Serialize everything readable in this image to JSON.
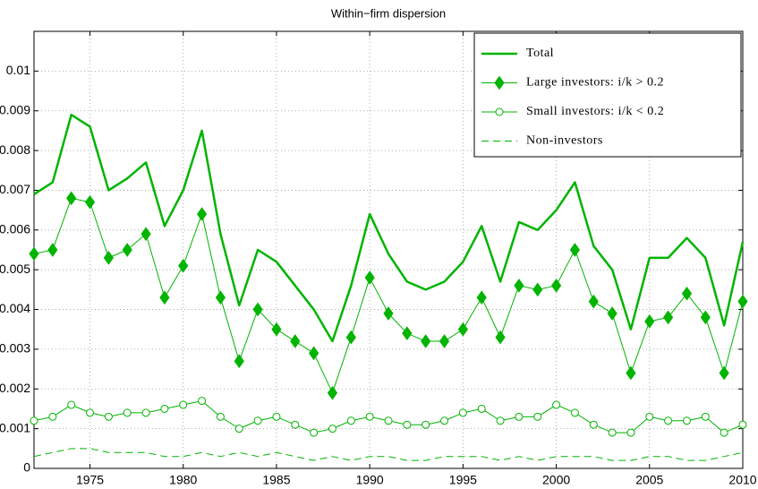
{
  "chart_data": {
    "type": "line",
    "title": "Within−firm dispersion",
    "x": [
      1972,
      1973,
      1974,
      1975,
      1976,
      1977,
      1978,
      1979,
      1980,
      1981,
      1982,
      1983,
      1984,
      1985,
      1986,
      1987,
      1988,
      1989,
      1990,
      1991,
      1992,
      1993,
      1994,
      1995,
      1996,
      1997,
      1998,
      1999,
      2000,
      2001,
      2002,
      2003,
      2004,
      2005,
      2006,
      2007,
      2008,
      2009,
      2010
    ],
    "xlim": [
      1972,
      2010
    ],
    "xticks": [
      1975,
      1980,
      1985,
      1990,
      1995,
      2000,
      2005,
      2010
    ],
    "ylim": [
      0,
      0.011
    ],
    "yticks": [
      0,
      0.001,
      0.002,
      0.003,
      0.004,
      0.005,
      0.006,
      0.007,
      0.008,
      0.009,
      0.01
    ],
    "grid": true,
    "legend": "upper right",
    "series": [
      {
        "name": "Total",
        "color": "#00b400",
        "width": 2.5,
        "marker": "none",
        "dash": false,
        "values": [
          0.0069,
          0.0072,
          0.0089,
          0.0086,
          0.007,
          0.0073,
          0.0077,
          0.0061,
          0.007,
          0.0085,
          0.0059,
          0.0041,
          0.0055,
          0.0052,
          0.0046,
          0.004,
          0.0032,
          0.0046,
          0.0064,
          0.0054,
          0.0047,
          0.0045,
          0.0047,
          0.0052,
          0.0061,
          0.0047,
          0.0062,
          0.006,
          0.0065,
          0.0072,
          0.0056,
          0.005,
          0.0035,
          0.0053,
          0.0053,
          0.0058,
          0.0053,
          0.0036,
          0.0057
        ]
      },
      {
        "name": "Large investors: i/k > 0.2",
        "color": "#00b400",
        "width": 1,
        "marker": "diamond",
        "dash": false,
        "values": [
          0.0054,
          0.0055,
          0.0068,
          0.0067,
          0.0053,
          0.0055,
          0.0059,
          0.0043,
          0.0051,
          0.0064,
          0.0043,
          0.0027,
          0.004,
          0.0035,
          0.0032,
          0.0029,
          0.0019,
          0.0033,
          0.0048,
          0.0039,
          0.0034,
          0.0032,
          0.0032,
          0.0035,
          0.0043,
          0.0033,
          0.0046,
          0.0045,
          0.0046,
          0.0055,
          0.0042,
          0.0039,
          0.0024,
          0.0037,
          0.0038,
          0.0044,
          0.0038,
          0.0024,
          0.0042
        ]
      },
      {
        "name": "Small investors: i/k < 0.2",
        "color": "#00b400",
        "width": 1,
        "marker": "circle",
        "dash": false,
        "values": [
          0.0012,
          0.0013,
          0.0016,
          0.0014,
          0.0013,
          0.0014,
          0.0014,
          0.0015,
          0.0016,
          0.0017,
          0.0013,
          0.001,
          0.0012,
          0.0013,
          0.0011,
          0.0009,
          0.001,
          0.0012,
          0.0013,
          0.0012,
          0.0011,
          0.0011,
          0.0012,
          0.0014,
          0.0015,
          0.0012,
          0.0013,
          0.0013,
          0.0016,
          0.0014,
          0.0011,
          0.0009,
          0.0009,
          0.0013,
          0.0012,
          0.0012,
          0.0013,
          0.0009,
          0.0011
        ]
      },
      {
        "name": "Non-investors",
        "color": "#00b400",
        "width": 1,
        "marker": "none",
        "dash": true,
        "values": [
          0.0003,
          0.0004,
          0.0005,
          0.0005,
          0.0004,
          0.0004,
          0.0004,
          0.0003,
          0.0003,
          0.0004,
          0.0003,
          0.0004,
          0.0003,
          0.0004,
          0.0003,
          0.0002,
          0.0003,
          0.0002,
          0.0003,
          0.0003,
          0.0002,
          0.0002,
          0.0003,
          0.0003,
          0.0003,
          0.0002,
          0.0003,
          0.0002,
          0.0003,
          0.0003,
          0.0003,
          0.0002,
          0.0002,
          0.0003,
          0.0003,
          0.0002,
          0.0002,
          0.0003,
          0.0004
        ]
      }
    ]
  }
}
